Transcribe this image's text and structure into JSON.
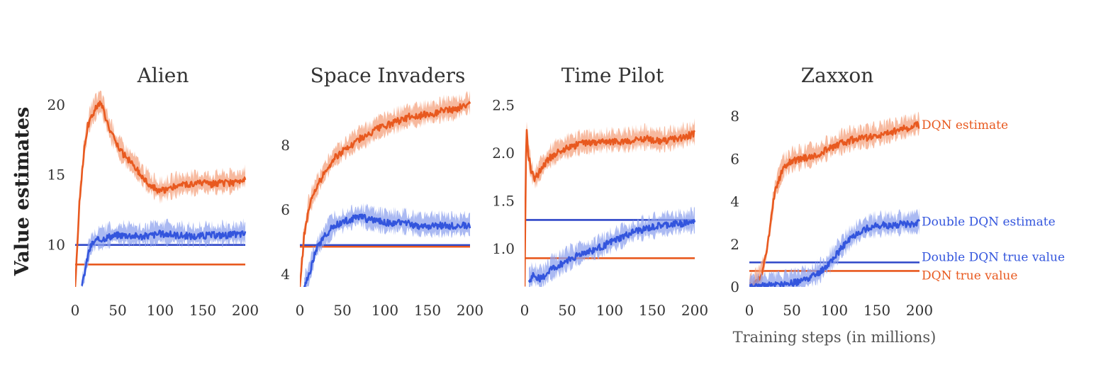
{
  "figure": {
    "ylabel": "Value estimates",
    "xlabel": "Training steps (in millions)",
    "colors": {
      "dqn": "#e8591f",
      "dqn_band": "#f4a27e",
      "double": "#3355dd",
      "double_band": "#8ea2ee",
      "true_double": "#2f47c8"
    }
  },
  "chart_data": [
    {
      "type": "line",
      "title": "Alien",
      "xlim": [
        0,
        200
      ],
      "ylim": [
        7,
        21
      ],
      "xticks": [
        0,
        50,
        100,
        150,
        200
      ],
      "yticks": [
        10,
        15,
        20
      ],
      "series": [
        {
          "key": "dqn_estimate",
          "color": "#e8591f",
          "x": [
            0,
            5,
            10,
            15,
            20,
            25,
            30,
            35,
            40,
            50,
            60,
            70,
            80,
            90,
            100,
            110,
            120,
            130,
            140,
            150,
            160,
            170,
            180,
            190,
            200
          ],
          "y": [
            7,
            13,
            16.5,
            18.5,
            19.3,
            19.8,
            20.2,
            19.3,
            18.3,
            17.0,
            16.2,
            15.6,
            14.8,
            14.2,
            13.8,
            14.0,
            14.2,
            14.3,
            14.3,
            14.4,
            14.3,
            14.4,
            14.4,
            14.5,
            14.8
          ]
        },
        {
          "key": "double_estimate",
          "color": "#3355dd",
          "x": [
            8,
            12,
            16,
            20,
            25,
            30,
            40,
            50,
            60,
            80,
            100,
            120,
            140,
            160,
            180,
            200
          ],
          "y": [
            7,
            8.3,
            9.5,
            10.1,
            10.3,
            10.4,
            10.6,
            10.7,
            10.7,
            10.6,
            10.8,
            10.7,
            10.6,
            10.7,
            10.7,
            10.8
          ]
        },
        {
          "key": "double_true",
          "color": "#2f47c8",
          "x": [
            0,
            200
          ],
          "y": [
            10,
            10
          ]
        },
        {
          "key": "dqn_true",
          "color": "#e8591f",
          "x": [
            0,
            200
          ],
          "y": [
            8.6,
            8.6
          ]
        }
      ]
    },
    {
      "type": "line",
      "title": "Space Invaders",
      "xlim": [
        0,
        200
      ],
      "ylim": [
        3.6,
        9.7
      ],
      "xticks": [
        0,
        50,
        100,
        150,
        200
      ],
      "yticks": [
        4,
        6,
        8
      ],
      "series": [
        {
          "key": "dqn_estimate",
          "color": "#e8591f",
          "x": [
            0,
            5,
            10,
            15,
            20,
            30,
            40,
            50,
            60,
            70,
            80,
            90,
            100,
            110,
            120,
            130,
            140,
            150,
            160,
            170,
            180,
            190,
            200
          ],
          "y": [
            3.6,
            5.2,
            6.0,
            6.4,
            6.7,
            7.2,
            7.6,
            7.8,
            8.0,
            8.2,
            8.3,
            8.5,
            8.6,
            8.7,
            8.8,
            8.9,
            8.9,
            9.0,
            9.0,
            9.1,
            9.1,
            9.2,
            9.3
          ]
        },
        {
          "key": "double_estimate",
          "color": "#3355dd",
          "x": [
            5,
            10,
            15,
            20,
            30,
            40,
            50,
            60,
            70,
            80,
            100,
            120,
            140,
            160,
            180,
            200
          ],
          "y": [
            3.6,
            3.9,
            4.4,
            4.8,
            5.2,
            5.5,
            5.6,
            5.7,
            5.8,
            5.7,
            5.6,
            5.6,
            5.5,
            5.5,
            5.5,
            5.5
          ]
        },
        {
          "key": "double_true",
          "color": "#2f47c8",
          "x": [
            0,
            200
          ],
          "y": [
            4.9,
            4.9
          ]
        },
        {
          "key": "dqn_true",
          "color": "#e8591f",
          "x": [
            0,
            200
          ],
          "y": [
            4.85,
            4.85
          ]
        }
      ]
    },
    {
      "type": "line",
      "title": "Time Pilot",
      "xlim": [
        0,
        200
      ],
      "ylim": [
        0.6,
        2.65
      ],
      "xticks": [
        0,
        50,
        100,
        150,
        200
      ],
      "yticks": [
        1.0,
        1.5,
        2.0,
        2.5
      ],
      "series": [
        {
          "key": "dqn_estimate",
          "color": "#e8591f",
          "x": [
            0,
            2,
            4,
            8,
            12,
            16,
            20,
            30,
            40,
            50,
            60,
            70,
            80,
            100,
            120,
            140,
            160,
            180,
            200
          ],
          "y": [
            0.6,
            2.3,
            2.0,
            1.8,
            1.72,
            1.78,
            1.85,
            1.95,
            2.02,
            2.05,
            2.08,
            2.1,
            2.1,
            2.12,
            2.12,
            2.15,
            2.12,
            2.15,
            2.2
          ]
        },
        {
          "key": "double_estimate",
          "color": "#3355dd",
          "x": [
            5,
            10,
            20,
            30,
            40,
            50,
            60,
            70,
            80,
            90,
            100,
            110,
            120,
            130,
            140,
            150,
            160,
            170,
            180,
            190,
            200
          ],
          "y": [
            0.65,
            0.72,
            0.68,
            0.78,
            0.82,
            0.88,
            0.92,
            0.96,
            0.98,
            1.02,
            1.06,
            1.1,
            1.14,
            1.18,
            1.2,
            1.22,
            1.24,
            1.25,
            1.26,
            1.27,
            1.28
          ]
        },
        {
          "key": "double_true",
          "color": "#2f47c8",
          "x": [
            0,
            200
          ],
          "y": [
            1.3,
            1.3
          ]
        },
        {
          "key": "dqn_true",
          "color": "#e8591f",
          "x": [
            0,
            200
          ],
          "y": [
            0.9,
            0.9
          ]
        }
      ]
    },
    {
      "type": "line",
      "title": "Zaxxon",
      "xlim": [
        0,
        200
      ],
      "ylim": [
        0,
        9.2
      ],
      "xticks": [
        0,
        50,
        100,
        150,
        200
      ],
      "yticks": [
        0,
        2,
        4,
        6,
        8
      ],
      "series": [
        {
          "key": "dqn_estimate",
          "color": "#e8591f",
          "x": [
            0,
            5,
            10,
            15,
            20,
            25,
            30,
            40,
            50,
            60,
            70,
            80,
            90,
            100,
            120,
            140,
            160,
            180,
            200
          ],
          "y": [
            0,
            0.1,
            0.3,
            0.7,
            1.5,
            3.0,
            4.5,
            5.6,
            5.9,
            6.0,
            6.1,
            6.2,
            6.4,
            6.6,
            6.9,
            7.0,
            7.2,
            7.4,
            7.6
          ]
        },
        {
          "key": "double_estimate",
          "color": "#3355dd",
          "x": [
            0,
            20,
            40,
            60,
            80,
            90,
            100,
            110,
            120,
            130,
            140,
            150,
            160,
            170,
            180,
            190,
            200
          ],
          "y": [
            0,
            0.05,
            0.1,
            0.25,
            0.6,
            0.95,
            1.4,
            1.9,
            2.3,
            2.6,
            2.8,
            2.85,
            2.9,
            2.9,
            2.95,
            2.95,
            3.0
          ]
        },
        {
          "key": "double_true",
          "color": "#2f47c8",
          "x": [
            0,
            200
          ],
          "y": [
            1.15,
            1.15
          ]
        },
        {
          "key": "dqn_true",
          "color": "#e8591f",
          "x": [
            0,
            200
          ],
          "y": [
            0.75,
            0.75
          ]
        }
      ]
    }
  ],
  "legend": [
    {
      "key": "dqn_estimate",
      "label": "DQN estimate",
      "color": "#e8591f"
    },
    {
      "key": "double_estimate",
      "label": "Double DQN estimate",
      "color": "#3355dd"
    },
    {
      "key": "double_true",
      "label": "Double DQN true value",
      "color": "#3355dd"
    },
    {
      "key": "dqn_true",
      "label": "DQN true value",
      "color": "#e8591f"
    }
  ]
}
